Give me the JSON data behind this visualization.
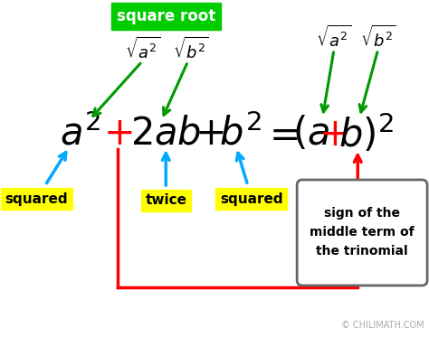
{
  "bg_color": "#ffffff",
  "title_text": "square root",
  "title_bg": "#00cc00",
  "title_fg": "#ffffff",
  "label_squared1": "squared",
  "label_twice": "twice",
  "label_squared2": "squared",
  "label_sign": "sign of the\nmiddle term of\nthe trinomial",
  "label_bg_yellow": "#ffff00",
  "arrow_green": "#009900",
  "arrow_blue": "#00aaff",
  "arrow_red": "#ff0000",
  "box_border": "#666666",
  "copyright": "© CHILIMATH.COM",
  "fig_w": 4.74,
  "fig_h": 3.73,
  "dpi": 100
}
